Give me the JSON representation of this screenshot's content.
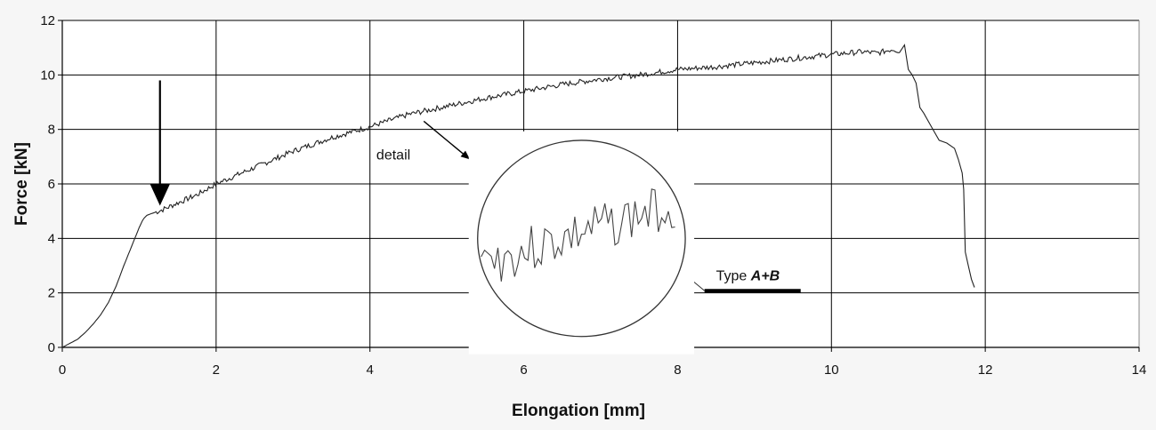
{
  "chart_data": {
    "type": "line",
    "title": "",
    "xlabel": "Elongation [mm]",
    "ylabel": "Force [kN]",
    "xlim": [
      0,
      14
    ],
    "ylim": [
      0,
      12
    ],
    "xticks": [
      0,
      2,
      4,
      6,
      8,
      10,
      12,
      14
    ],
    "yticks": [
      0,
      2,
      4,
      6,
      8,
      10,
      12
    ],
    "grid": true,
    "series": [
      {
        "name": "",
        "color": "#222222",
        "x": [
          0,
          0.1,
          0.2,
          0.3,
          0.4,
          0.5,
          0.6,
          0.7,
          0.8,
          0.9,
          1.0,
          1.05,
          1.1,
          1.2,
          1.3,
          1.5,
          1.75,
          2.0,
          2.5,
          3.0,
          3.5,
          4.0,
          4.5,
          5.0,
          5.5,
          6.0,
          6.5,
          7.0,
          7.5,
          8.0,
          8.5,
          9.0,
          9.5,
          10.0,
          10.2,
          10.4,
          10.6,
          10.8,
          10.9,
          10.95,
          11.0,
          11.05,
          11.1,
          11.15,
          11.2,
          11.3,
          11.4,
          11.5,
          11.6,
          11.65,
          11.7,
          11.72,
          11.74,
          11.78,
          11.82,
          11.86
        ],
        "y": [
          0,
          0.15,
          0.3,
          0.55,
          0.85,
          1.2,
          1.65,
          2.25,
          3.0,
          3.7,
          4.4,
          4.7,
          4.85,
          4.95,
          5.05,
          5.3,
          5.6,
          6.0,
          6.6,
          7.2,
          7.7,
          8.1,
          8.55,
          8.85,
          9.15,
          9.4,
          9.65,
          9.85,
          10.0,
          10.2,
          10.3,
          10.45,
          10.6,
          10.75,
          10.8,
          10.85,
          10.8,
          10.95,
          10.85,
          11.1,
          10.2,
          10.0,
          9.7,
          8.8,
          8.6,
          8.1,
          7.6,
          7.5,
          7.3,
          6.9,
          6.4,
          5.8,
          3.5,
          3.0,
          2.5,
          2.2
        ],
        "noise_from_x": 1.2,
        "noise_to_x": 10.9,
        "noise_amplitude": 0.1
      }
    ],
    "annotations": [
      {
        "text": "detail",
        "kind": "label-with-arrow",
        "x": 4.5,
        "y": 7.1,
        "arrow_to": [
          5.3,
          6.9
        ]
      },
      {
        "text_plain": "Type ",
        "text_bold": "A+B",
        "kind": "legend-label",
        "x": 8.5,
        "y": 2.65,
        "leader_from": [
          8.0,
          2.9
        ]
      },
      {
        "kind": "arrow-down",
        "x": 1.27,
        "from_y": 9.8,
        "to_y": 5.2
      },
      {
        "kind": "zoom-circle",
        "cx": 6.75,
        "cy": 4.0,
        "rx": 1.35,
        "ry": 3.6
      }
    ]
  }
}
